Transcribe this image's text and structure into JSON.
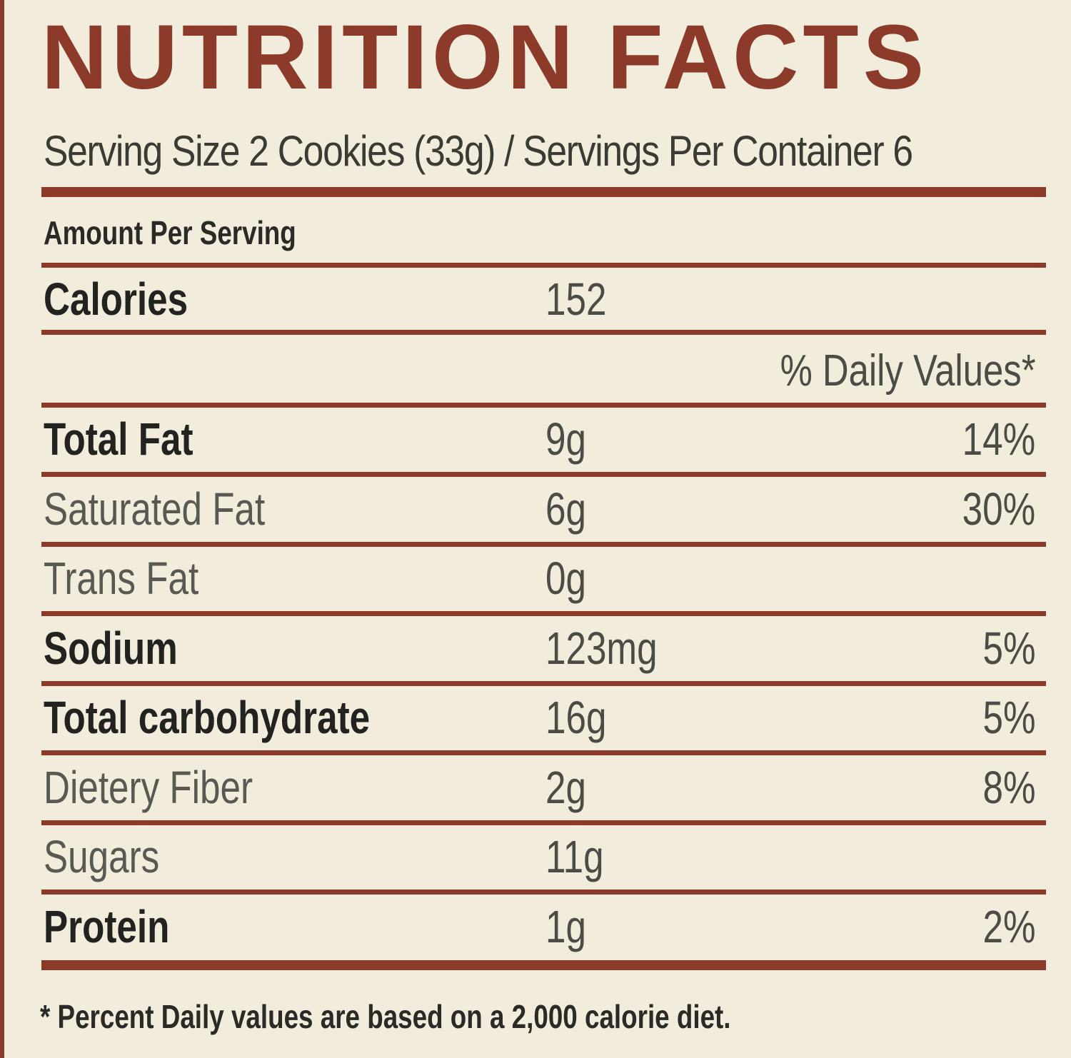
{
  "title": "NUTRITION FACTS",
  "serving_line": "Serving Size 2 Cookies (33g) / Servings Per Container 6",
  "amount_per_serving": "Amount Per Serving",
  "calories": {
    "label": "Calories",
    "value": "152"
  },
  "daily_values_header": "% Daily Values*",
  "nutrients": [
    {
      "label": "Total Fat",
      "amount": "9g",
      "dv": "14%",
      "style": "bold"
    },
    {
      "label": "Saturated Fat",
      "amount": "6g",
      "dv": "30%",
      "style": "light"
    },
    {
      "label": "Trans Fat",
      "amount": "0g",
      "dv": "",
      "style": "light"
    },
    {
      "label": "Sodium",
      "amount": "123mg",
      "dv": "5%",
      "style": "bold"
    },
    {
      "label": "Total carbohydrate",
      "amount": "16g",
      "dv": "5%",
      "style": "bold"
    },
    {
      "label": "Dietery Fiber",
      "amount": "2g",
      "dv": "8%",
      "style": "light"
    },
    {
      "label": "Sugars",
      "amount": "11g",
      "dv": "",
      "style": "light"
    },
    {
      "label": "Protein",
      "amount": "1g",
      "dv": "2%",
      "style": "bold"
    }
  ],
  "footnote": "* Percent Daily values are based on a 2,000 calorie diet.",
  "colors": {
    "accent": "#8c3b2b",
    "background": "#f1ecdb",
    "text_dark": "#222220",
    "text_light": "#5a5852"
  }
}
